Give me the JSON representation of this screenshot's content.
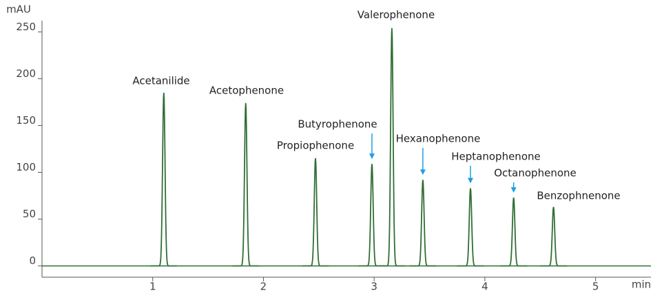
{
  "chart_data": {
    "type": "chromatogram",
    "y_label": "mAU",
    "x_label": "min",
    "xlim": [
      0,
      5.5
    ],
    "xticks": [
      1,
      2,
      3,
      4,
      5
    ],
    "ylim": [
      -12,
      262
    ],
    "yticks": [
      0,
      50,
      100,
      150,
      200,
      250
    ],
    "color": "#2f6e34",
    "arrow_color": "#1ba1e2",
    "peaks": [
      {
        "name": "Acetanilide",
        "time": 1.1,
        "height": 185,
        "arrow": false
      },
      {
        "name": "Acetophenone",
        "time": 1.84,
        "height": 174,
        "arrow": false
      },
      {
        "name": "Propiophenone",
        "time": 2.47,
        "height": 115,
        "arrow": false
      },
      {
        "name": "Butyrophenone",
        "time": 2.98,
        "height": 109,
        "arrow": true
      },
      {
        "name": "Valerophenone",
        "time": 3.16,
        "height": 254,
        "arrow": false
      },
      {
        "name": "Hexanophenone",
        "time": 3.44,
        "height": 92,
        "arrow": true
      },
      {
        "name": "Heptanophenone",
        "time": 3.87,
        "height": 83,
        "arrow": true
      },
      {
        "name": "Octanophenone",
        "time": 4.26,
        "height": 73,
        "arrow": true
      },
      {
        "name": "Benzophnenone",
        "time": 4.62,
        "height": 63,
        "arrow": false
      }
    ]
  }
}
